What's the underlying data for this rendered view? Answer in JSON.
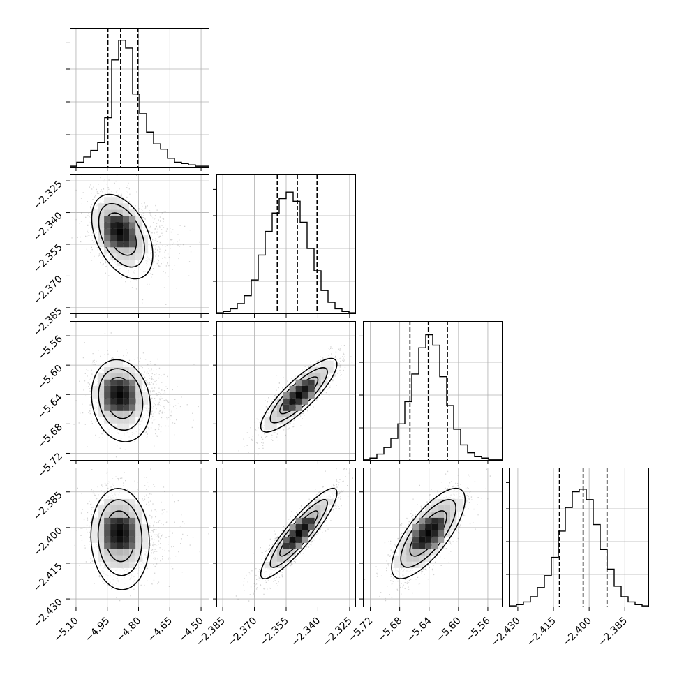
{
  "chart_data": {
    "type": "corner",
    "n_params": 4,
    "params": [
      {
        "range": [
          -5.13,
          -4.46
        ],
        "ticks": [
          -5.1,
          -4.95,
          -4.8,
          -4.65,
          -4.5
        ],
        "tick_labels": [
          "−5.10",
          "−4.95",
          "−4.80",
          "−4.65",
          "−4.50"
        ],
        "quantiles": [
          -4.947,
          -4.886,
          -4.803
        ],
        "hist_peak": -4.89,
        "hist_width": 0.07,
        "hist_skew": 0.09,
        "hist_counts": [
          0.01,
          0.04,
          0.08,
          0.13,
          0.19,
          0.38,
          0.82,
          0.97,
          0.91,
          0.56,
          0.41,
          0.27,
          0.18,
          0.14,
          0.07,
          0.04,
          0.03,
          0.02,
          0.01,
          0.01
        ]
      },
      {
        "range": [
          -2.388,
          -2.322
        ],
        "ticks": [
          -2.385,
          -2.37,
          -2.355,
          -2.34,
          -2.325
        ],
        "tick_labels": [
          "−2.385",
          "−2.370",
          "−2.355",
          "−2.340",
          "−2.325"
        ],
        "quantiles": [
          -2.3592,
          -2.3497,
          -2.3404
        ],
        "hist_peak": -2.349,
        "hist_width": 0.009,
        "hist_skew": 0,
        "hist_counts": [
          0.01,
          0.02,
          0.04,
          0.08,
          0.14,
          0.26,
          0.45,
          0.63,
          0.77,
          0.88,
          0.93,
          0.86,
          0.7,
          0.5,
          0.33,
          0.18,
          0.09,
          0.04,
          0.02,
          0.01
        ]
      },
      {
        "range": [
          -5.73,
          -5.54
        ],
        "ticks": [
          -5.72,
          -5.68,
          -5.64,
          -5.6,
          -5.56
        ],
        "tick_labels": [
          "−5.72",
          "−5.68",
          "−5.64",
          "−5.60",
          "−5.56"
        ],
        "quantiles": [
          -5.666,
          -5.641,
          -5.615
        ],
        "hist_peak": -5.641,
        "hist_width": 0.025,
        "hist_skew": 0,
        "hist_counts": [
          0.01,
          0.02,
          0.05,
          0.1,
          0.17,
          0.28,
          0.45,
          0.66,
          0.86,
          0.96,
          0.88,
          0.64,
          0.42,
          0.24,
          0.12,
          0.06,
          0.03,
          0.02,
          0.01,
          0.01
        ]
      },
      {
        "range": [
          -2.4335,
          -2.3748
        ],
        "ticks": [
          -2.43,
          -2.415,
          -2.4,
          -2.385
        ],
        "tick_labels": [
          "−2.430",
          "−2.415",
          "−2.400",
          "−2.385"
        ],
        "quantiles": [
          -2.4125,
          -2.4025,
          -2.3925
        ],
        "hist_peak": -2.4025,
        "hist_width": 0.0095,
        "hist_skew": 0,
        "hist_counts": [
          0.01,
          0.02,
          0.04,
          0.08,
          0.15,
          0.24,
          0.38,
          0.58,
          0.76,
          0.88,
          0.9,
          0.82,
          0.63,
          0.44,
          0.29,
          0.16,
          0.08,
          0.04,
          0.02,
          0.01
        ]
      }
    ],
    "correlations": [
      [
        1,
        0,
        0,
        0
      ],
      [
        -0.35,
        1,
        0,
        0
      ],
      [
        -0.1,
        0.85,
        1,
        0
      ],
      [
        -0.05,
        0.9,
        0.75,
        1
      ]
    ],
    "quantile_levels": [
      0.16,
      0.5,
      0.84
    ],
    "contour_levels_sigma": [
      0.5,
      1.0,
      1.5,
      2.0
    ],
    "grid": true,
    "colors": {
      "line": "#000000",
      "grid": "#b0b0b0",
      "points": "#808080"
    }
  }
}
